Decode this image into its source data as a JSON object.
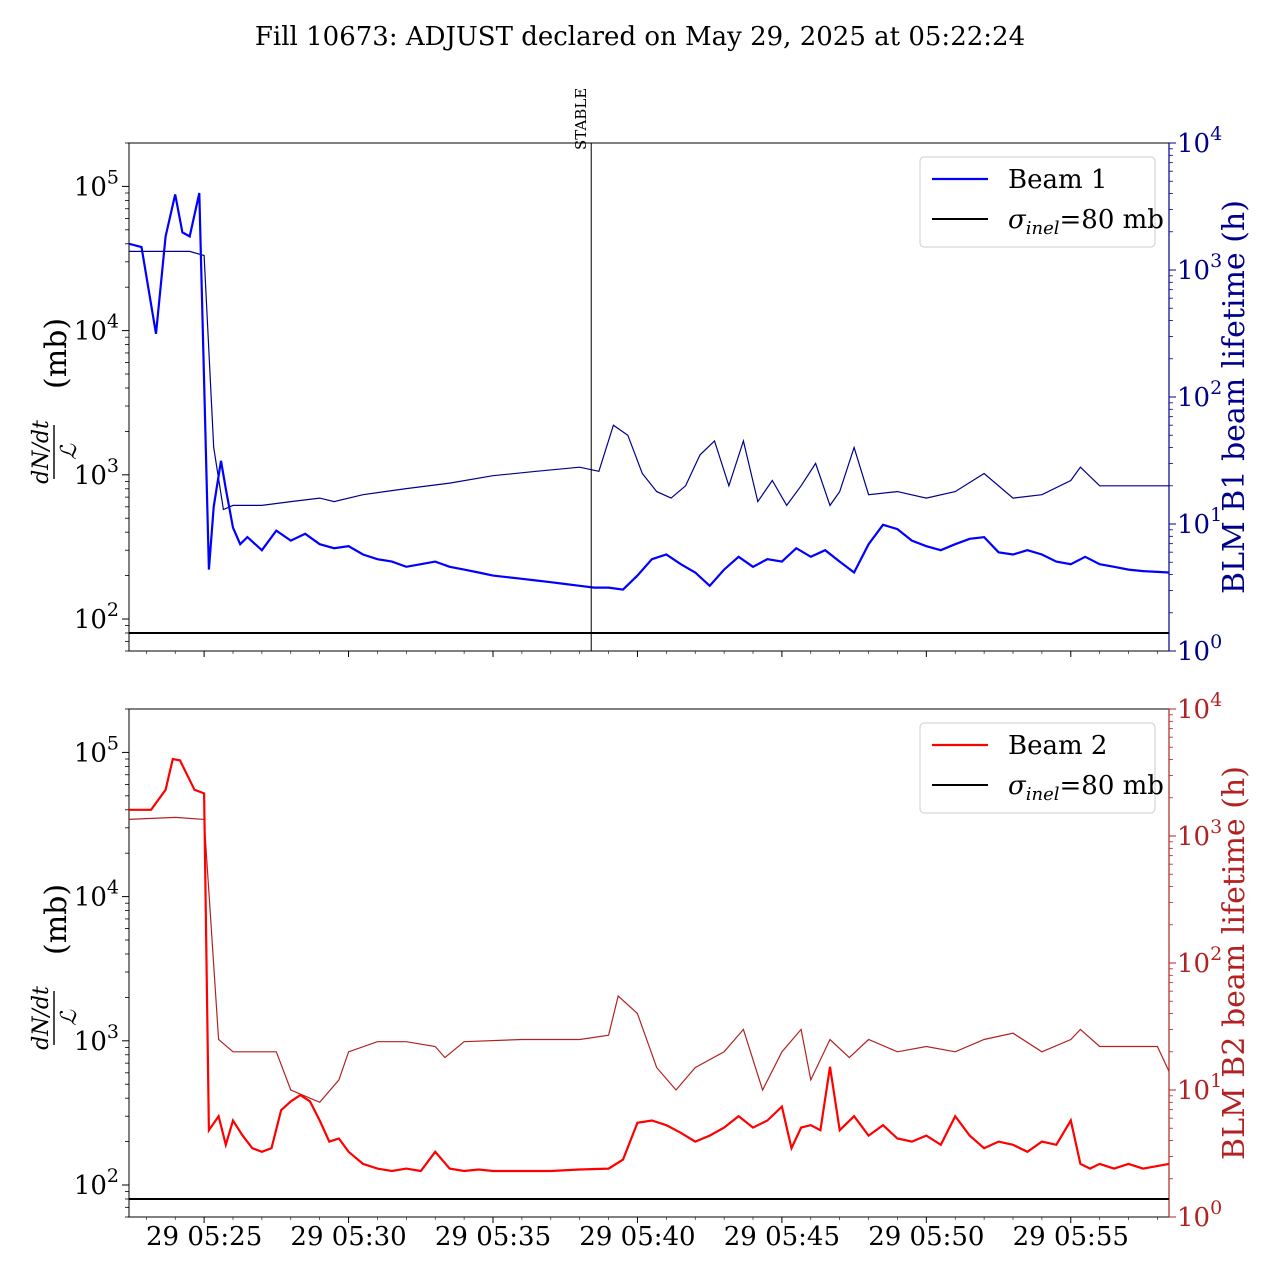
{
  "title": "Fill 10673: ADJUST declared on May 29, 2025 at 05:22:24",
  "marker": {
    "label": "STABLE",
    "time": "05:38:24"
  },
  "x_ticks": [
    "29 05:25",
    "29 05:30",
    "29 05:35",
    "29 05:40",
    "29 05:45",
    "29 05:50",
    "29 05:55"
  ],
  "left_ticks": [
    {
      "base": "10",
      "exp": "5"
    },
    {
      "base": "10",
      "exp": "4"
    },
    {
      "base": "10",
      "exp": "3"
    },
    {
      "base": "10",
      "exp": "2"
    }
  ],
  "right_ticks": [
    {
      "base": "10",
      "exp": "4"
    },
    {
      "base": "10",
      "exp": "3"
    },
    {
      "base": "10",
      "exp": "2"
    },
    {
      "base": "10",
      "exp": "1"
    },
    {
      "base": "10",
      "exp": "0"
    }
  ],
  "left_ylabel_num": "dN/dt",
  "left_ylabel_den": "ℒ",
  "left_ylabel_unit": "(mb)",
  "sigma_label": {
    "sym": "σ",
    "sub": "inel",
    "rest": "=80 mb"
  },
  "colors": {
    "beam1": "#0000ff",
    "blm1": "#00008b",
    "beam2": "#ff0000",
    "blm2": "#b22222",
    "sigma": "#000000"
  },
  "chart_data": [
    {
      "type": "line",
      "panel": "top",
      "x_unit": "time (HH:MM:SS, 29 May 2025)",
      "xlim": [
        "05:22:24",
        "05:58:24"
      ],
      "y_left": {
        "scale": "log",
        "ylim": [
          60,
          200000
        ]
      },
      "y_right": {
        "scale": "log",
        "ylim": [
          1,
          10000
        ],
        "label": "BLM B1 beam lifetime (h)"
      },
      "legend": {
        "position": "top-right",
        "entries": [
          "Beam 1",
          "σinel=80 mb"
        ]
      },
      "series": [
        {
          "name": "Beam 1",
          "axis": "left",
          "x": [
            "05:22:24",
            "05:22:50",
            "05:23:20",
            "05:23:40",
            "05:24:00",
            "05:24:15",
            "05:24:30",
            "05:24:50",
            "05:25:10",
            "05:25:20",
            "05:25:35",
            "05:25:45",
            "05:26:00",
            "05:26:15",
            "05:26:30",
            "05:27:00",
            "05:27:30",
            "05:28:00",
            "05:28:30",
            "05:29:00",
            "05:29:30",
            "05:30:00",
            "05:30:30",
            "05:31:00",
            "05:31:30",
            "05:32:00",
            "05:32:30",
            "05:33:00",
            "05:33:30",
            "05:34:00",
            "05:34:30",
            "05:35:00",
            "05:35:30",
            "05:36:00",
            "05:36:30",
            "05:37:00",
            "05:37:30",
            "05:38:00",
            "05:38:30",
            "05:39:00",
            "05:39:30",
            "05:40:00",
            "05:40:30",
            "05:41:00",
            "05:41:30",
            "05:42:00",
            "05:42:30",
            "05:43:00",
            "05:43:30",
            "05:44:00",
            "05:44:30",
            "05:45:00",
            "05:45:30",
            "05:46:00",
            "05:46:30",
            "05:47:00",
            "05:47:30",
            "05:48:00",
            "05:48:30",
            "05:49:00",
            "05:49:30",
            "05:50:00",
            "05:50:30",
            "05:51:00",
            "05:51:30",
            "05:52:00",
            "05:52:30",
            "05:53:00",
            "05:53:30",
            "05:54:00",
            "05:54:30",
            "05:55:00",
            "05:55:30",
            "05:56:00",
            "05:56:30",
            "05:57:00",
            "05:57:30",
            "05:58:24"
          ],
          "y": [
            40000,
            38000,
            9500,
            45000,
            88000,
            48000,
            45000,
            90000,
            220,
            600,
            1250,
            800,
            430,
            330,
            370,
            300,
            410,
            350,
            390,
            330,
            310,
            320,
            280,
            260,
            250,
            230,
            240,
            250,
            230,
            220,
            210,
            200,
            195,
            190,
            185,
            180,
            175,
            170,
            165,
            165,
            160,
            200,
            260,
            280,
            240,
            210,
            170,
            220,
            270,
            230,
            260,
            250,
            310,
            270,
            300,
            250,
            210,
            330,
            450,
            420,
            350,
            320,
            300,
            330,
            360,
            370,
            290,
            280,
            300,
            280,
            250,
            240,
            270,
            240,
            230,
            220,
            215,
            210
          ]
        },
        {
          "name": "BLM B1 beam lifetime",
          "axis": "right",
          "x": [
            "05:22:24",
            "05:24:30",
            "05:25:00",
            "05:25:20",
            "05:25:40",
            "05:26:00",
            "05:27:00",
            "05:28:00",
            "05:29:00",
            "05:29:30",
            "05:30:30",
            "05:32:00",
            "05:33:30",
            "05:35:00",
            "05:36:30",
            "05:38:00",
            "05:38:40",
            "05:39:10",
            "05:39:40",
            "05:40:10",
            "05:40:40",
            "05:41:10",
            "05:41:40",
            "05:42:10",
            "05:42:40",
            "05:43:10",
            "05:43:40",
            "05:44:10",
            "05:44:40",
            "05:45:10",
            "05:45:40",
            "05:46:10",
            "05:46:40",
            "05:47:00",
            "05:47:30",
            "05:48:00",
            "05:49:00",
            "05:50:00",
            "05:51:00",
            "05:52:00",
            "05:53:00",
            "05:54:00",
            "05:55:00",
            "05:55:20",
            "05:56:00",
            "05:57:00",
            "05:58:24"
          ],
          "y": [
            1400,
            1400,
            1300,
            40,
            13,
            14,
            14,
            15,
            16,
            15,
            17,
            19,
            21,
            24,
            26,
            28,
            26,
            60,
            50,
            25,
            18,
            16,
            20,
            35,
            45,
            20,
            45,
            15,
            22,
            14,
            20,
            30,
            14,
            18,
            40,
            17,
            18,
            16,
            18,
            25,
            16,
            17,
            22,
            28,
            20,
            20,
            20
          ]
        },
        {
          "name": "σinel=80 mb",
          "axis": "left",
          "x": [
            "05:22:24",
            "05:58:24"
          ],
          "y": [
            80,
            80
          ]
        }
      ]
    },
    {
      "type": "line",
      "panel": "bottom",
      "x_unit": "time (HH:MM:SS, 29 May 2025)",
      "xlim": [
        "05:22:24",
        "05:58:24"
      ],
      "y_left": {
        "scale": "log",
        "ylim": [
          60,
          200000
        ]
      },
      "y_right": {
        "scale": "log",
        "ylim": [
          1,
          10000
        ],
        "label": "BLM B2 beam lifetime (h)"
      },
      "legend": {
        "position": "top-right",
        "entries": [
          "Beam 2",
          "σinel=80 mb"
        ]
      },
      "series": [
        {
          "name": "Beam 2",
          "axis": "left",
          "x": [
            "05:22:24",
            "05:23:10",
            "05:23:40",
            "05:23:55",
            "05:24:10",
            "05:24:40",
            "05:25:00",
            "05:25:10",
            "05:25:30",
            "05:25:45",
            "05:26:00",
            "05:26:20",
            "05:26:40",
            "05:27:00",
            "05:27:20",
            "05:27:40",
            "05:28:00",
            "05:28:20",
            "05:28:40",
            "05:29:00",
            "05:29:20",
            "05:29:40",
            "05:30:00",
            "05:30:30",
            "05:31:00",
            "05:31:30",
            "05:32:00",
            "05:32:30",
            "05:33:00",
            "05:33:30",
            "05:34:00",
            "05:34:30",
            "05:35:00",
            "05:36:00",
            "05:37:00",
            "05:38:00",
            "05:39:00",
            "05:39:30",
            "05:40:00",
            "05:40:30",
            "05:41:00",
            "05:41:30",
            "05:42:00",
            "05:42:30",
            "05:43:00",
            "05:43:30",
            "05:44:00",
            "05:44:30",
            "05:45:00",
            "05:45:20",
            "05:45:40",
            "05:46:00",
            "05:46:20",
            "05:46:40",
            "05:47:00",
            "05:47:30",
            "05:48:00",
            "05:48:30",
            "05:49:00",
            "05:49:30",
            "05:50:00",
            "05:50:30",
            "05:51:00",
            "05:51:30",
            "05:52:00",
            "05:52:30",
            "05:53:00",
            "05:53:30",
            "05:54:00",
            "05:54:30",
            "05:55:00",
            "05:55:20",
            "05:55:40",
            "05:56:00",
            "05:56:30",
            "05:57:00",
            "05:57:30",
            "05:58:24"
          ],
          "y": [
            40000,
            40000,
            55000,
            90000,
            88000,
            55000,
            52000,
            240,
            300,
            190,
            280,
            220,
            180,
            170,
            180,
            330,
            380,
            420,
            380,
            280,
            200,
            210,
            170,
            140,
            130,
            125,
            130,
            125,
            170,
            130,
            125,
            128,
            125,
            125,
            125,
            128,
            130,
            150,
            270,
            280,
            260,
            230,
            200,
            220,
            250,
            300,
            250,
            280,
            350,
            180,
            250,
            260,
            240,
            660,
            240,
            300,
            220,
            260,
            210,
            200,
            220,
            190,
            300,
            220,
            180,
            200,
            190,
            170,
            200,
            190,
            280,
            140,
            130,
            140,
            130,
            140,
            130,
            140
          ]
        },
        {
          "name": "BLM B2 beam lifetime",
          "axis": "right",
          "x": [
            "05:22:24",
            "05:24:00",
            "05:25:00",
            "05:25:30",
            "05:26:00",
            "05:27:30",
            "05:28:00",
            "05:29:00",
            "05:29:40",
            "05:30:00",
            "05:31:00",
            "05:32:00",
            "05:33:00",
            "05:33:20",
            "05:34:00",
            "05:36:00",
            "05:38:00",
            "05:39:00",
            "05:39:20",
            "05:40:00",
            "05:40:40",
            "05:41:20",
            "05:42:00",
            "05:43:00",
            "05:43:40",
            "05:44:20",
            "05:45:00",
            "05:45:40",
            "05:46:00",
            "05:46:40",
            "05:47:20",
            "05:48:00",
            "05:49:00",
            "05:50:00",
            "05:51:00",
            "05:52:00",
            "05:53:00",
            "05:54:00",
            "05:55:00",
            "05:55:20",
            "05:56:00",
            "05:57:00",
            "05:58:00",
            "05:58:24"
          ],
          "y": [
            1350,
            1400,
            1350,
            25,
            20,
            20,
            10,
            8,
            12,
            20,
            24,
            24,
            22,
            18,
            24,
            25,
            25,
            27,
            55,
            40,
            15,
            10,
            15,
            20,
            30,
            10,
            20,
            30,
            12,
            25,
            18,
            25,
            20,
            22,
            20,
            25,
            28,
            20,
            25,
            30,
            22,
            22,
            22,
            14
          ]
        },
        {
          "name": "σinel=80 mb",
          "axis": "left",
          "x": [
            "05:22:24",
            "05:58:24"
          ],
          "y": [
            80,
            80
          ]
        }
      ]
    }
  ]
}
